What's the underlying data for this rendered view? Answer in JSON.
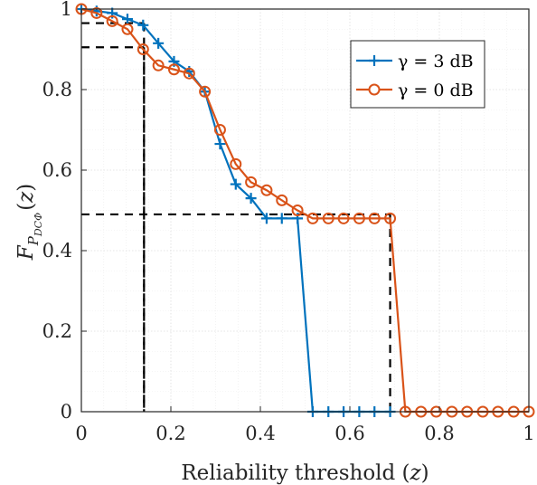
{
  "chart_data": {
    "type": "line",
    "xlabel": "Reliability threshold (z)",
    "ylabel": "F_{P_{DCΦ}}(z)",
    "xlim": [
      0,
      1
    ],
    "ylim": [
      0,
      1
    ],
    "xticks": [
      "0",
      "0.2",
      "0.4",
      "0.6",
      "0.8",
      "1"
    ],
    "yticks": [
      "0",
      "0.2",
      "0.4",
      "0.6",
      "0.8",
      "1"
    ],
    "xtick_values": [
      0,
      0.2,
      0.4,
      0.6,
      0.8,
      1
    ],
    "ytick_values": [
      0,
      0.2,
      0.4,
      0.6,
      0.8,
      1
    ],
    "grid": true,
    "legend_position": "top-right",
    "series": [
      {
        "name": "γ = 3 dB",
        "color": "#0072BD",
        "marker": "plus",
        "x": [
          0,
          0.034,
          0.069,
          0.103,
          0.138,
          0.172,
          0.207,
          0.241,
          0.276,
          0.31,
          0.345,
          0.379,
          0.414,
          0.448,
          0.483,
          0.517,
          0.552,
          0.586,
          0.621,
          0.655,
          0.69
        ],
        "y": [
          1.0,
          0.995,
          0.99,
          0.975,
          0.96,
          0.915,
          0.87,
          0.845,
          0.795,
          0.665,
          0.565,
          0.53,
          0.48,
          0.48,
          0.48,
          0.0,
          0.0,
          0.0,
          0.0,
          0.0,
          0.0
        ]
      },
      {
        "name": "γ = 0 dB",
        "color": "#D95319",
        "marker": "circle",
        "x": [
          0,
          0.034,
          0.069,
          0.103,
          0.138,
          0.172,
          0.207,
          0.241,
          0.276,
          0.31,
          0.345,
          0.379,
          0.414,
          0.448,
          0.483,
          0.517,
          0.552,
          0.586,
          0.621,
          0.655,
          0.69,
          0.724,
          0.759,
          0.793,
          0.828,
          0.862,
          0.897,
          0.931,
          0.966,
          1.0
        ],
        "y": [
          1.0,
          0.99,
          0.97,
          0.95,
          0.9,
          0.86,
          0.85,
          0.84,
          0.795,
          0.7,
          0.615,
          0.57,
          0.55,
          0.525,
          0.5,
          0.48,
          0.48,
          0.48,
          0.48,
          0.48,
          0.48,
          0.0,
          0.0,
          0.0,
          0.0,
          0.0,
          0.0,
          0.0,
          0.0,
          0.0
        ]
      }
    ],
    "reference_lines": [
      {
        "x": 0.14,
        "y": 0.965
      },
      {
        "x": 0.14,
        "y": 0.905
      },
      {
        "x": 0.69,
        "y": 0.49
      }
    ]
  }
}
